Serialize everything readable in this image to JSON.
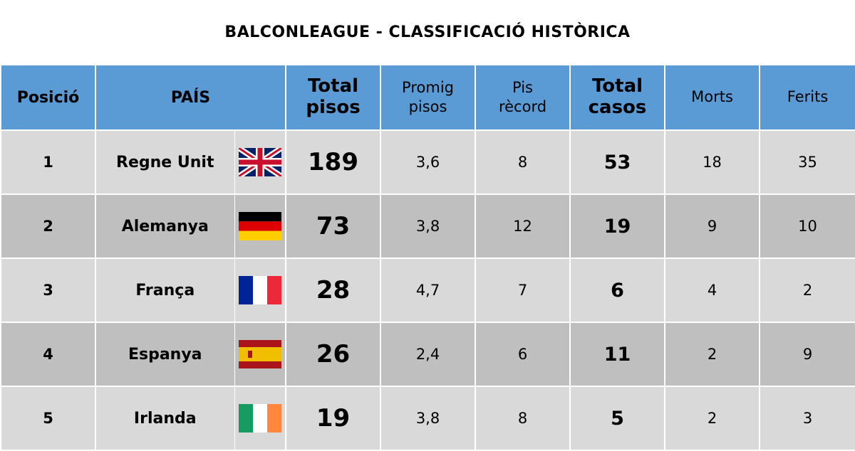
{
  "title": "BALCONLEAGUE - CLASSIFICACIÓ HISTÒRICA",
  "colors": {
    "header_bg": "#5b9bd5",
    "row_light": "#d9d9d9",
    "row_dark": "#bfbfbf"
  },
  "headers": {
    "posicio": "Posició",
    "pais": "PAÍS",
    "total_pisos": [
      "Total",
      "pisos"
    ],
    "promig_pisos": [
      "Promig",
      "pisos"
    ],
    "pis_record": [
      "Pis",
      "rècord"
    ],
    "total_casos": [
      "Total",
      "casos"
    ],
    "morts": "Morts",
    "ferits": "Ferits"
  },
  "rows": [
    {
      "posicio": "1",
      "pais": "Regne Unit",
      "flag": "uk-flag-icon",
      "total_pisos": "189",
      "promig": "3,6",
      "record": "8",
      "casos": "53",
      "morts": "18",
      "ferits": "35"
    },
    {
      "posicio": "2",
      "pais": "Alemanya",
      "flag": "germany-flag-icon",
      "total_pisos": "73",
      "promig": "3,8",
      "record": "12",
      "casos": "19",
      "morts": "9",
      "ferits": "10"
    },
    {
      "posicio": "3",
      "pais": "França",
      "flag": "france-flag-icon",
      "total_pisos": "28",
      "promig": "4,7",
      "record": "7",
      "casos": "6",
      "morts": "4",
      "ferits": "2"
    },
    {
      "posicio": "4",
      "pais": "Espanya",
      "flag": "spain-flag-icon",
      "total_pisos": "26",
      "promig": "2,4",
      "record": "6",
      "casos": "11",
      "morts": "2",
      "ferits": "9"
    },
    {
      "posicio": "5",
      "pais": "Irlanda",
      "flag": "ireland-flag-icon",
      "total_pisos": "19",
      "promig": "3,8",
      "record": "8",
      "casos": "5",
      "morts": "2",
      "ferits": "3"
    }
  ]
}
